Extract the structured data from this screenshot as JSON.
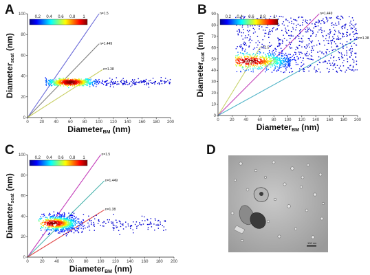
{
  "panels": [
    "A",
    "B",
    "C",
    "D"
  ],
  "colorbar": {
    "ticks": [
      "0.2",
      "0.4",
      "0.6",
      "0.8",
      "1"
    ]
  },
  "axis_labels": {
    "y_main": "Diameter",
    "y_sub": "scat",
    "y_unit": " (nm)",
    "x_main": "Diameter",
    "x_sub": "BM",
    "x_unit": " (nm)"
  },
  "em_image": {
    "scale_bar_label": "100 nm"
  },
  "chart_data": [
    {
      "panel": "A",
      "type": "scatter",
      "title": "",
      "xlabel": "DiameterBM (nm)",
      "ylabel": "Diameterscat (nm)",
      "xlim": [
        0,
        200
      ],
      "ylim": [
        0,
        100
      ],
      "x_ticks": [
        "0",
        "20",
        "40",
        "60",
        "80",
        "100",
        "120",
        "140",
        "160",
        "180",
        "200"
      ],
      "y_ticks": [
        "0",
        "20",
        "40",
        "60",
        "80",
        "100"
      ],
      "reference_lines": [
        {
          "label": "n=1.5",
          "slope": 1.0,
          "color": "#6a6ad8"
        },
        {
          "label": "n=1.449",
          "slope": 0.71,
          "color": "#808080"
        },
        {
          "label": "n=1.38",
          "slope": 0.44,
          "color": "#c8cf63"
        }
      ],
      "cluster": {
        "x_mean": 60,
        "x_sd": 16,
        "y_mean": 34,
        "y_sd": 1.6,
        "x_range": [
          25,
          200
        ],
        "core_x": 60,
        "core_y": 34
      }
    },
    {
      "panel": "B",
      "type": "scatter",
      "title": "",
      "xlabel": "DiameterBM (nm)",
      "ylabel": "Diameterscat (nm)",
      "xlim": [
        0,
        200
      ],
      "ylim": [
        0,
        90
      ],
      "x_ticks": [
        "0",
        "20",
        "40",
        "60",
        "80",
        "100",
        "120",
        "140",
        "160",
        "180",
        "200"
      ],
      "y_ticks": [
        "0",
        "10",
        "20",
        "30",
        "40",
        "50",
        "60",
        "70",
        "80",
        "90"
      ],
      "reference_lines": [
        {
          "label": "n=1.5",
          "slope": 1.0,
          "color": "#c7d36b"
        },
        {
          "label": "n=1.449",
          "slope": 0.63,
          "color": "#c23fb8"
        },
        {
          "label": "n=1.38",
          "slope": 0.34,
          "color": "#4fb3c7"
        }
      ],
      "cluster": {
        "x_mean": 90,
        "x_sd": 45,
        "y_mean": 55,
        "y_sd": 13,
        "x_range": [
          25,
          200
        ],
        "core_x": 45,
        "core_y": 48
      }
    },
    {
      "panel": "C",
      "type": "scatter",
      "title": "",
      "xlabel": "DiameterBM (nm)",
      "ylabel": "Diameterscat (nm)",
      "xlim": [
        0,
        200
      ],
      "ylim": [
        0,
        100
      ],
      "x_ticks": [
        "0",
        "20",
        "40",
        "60",
        "80",
        "100",
        "120",
        "140",
        "160",
        "180",
        "200"
      ],
      "y_ticks": [
        "0",
        "20",
        "40",
        "60",
        "80",
        "100"
      ],
      "reference_lines": [
        {
          "label": "n=1.5",
          "slope": 1.0,
          "color": "#c43fba"
        },
        {
          "label": "n=1.449",
          "slope": 0.71,
          "color": "#4fb6b0"
        },
        {
          "label": "n=1.38",
          "slope": 0.44,
          "color": "#e04a4a"
        }
      ],
      "cluster": {
        "x_mean": 45,
        "x_sd": 18,
        "y_mean": 33,
        "y_sd": 4,
        "x_range": [
          15,
          190
        ],
        "core_x": 35,
        "core_y": 33
      }
    }
  ]
}
